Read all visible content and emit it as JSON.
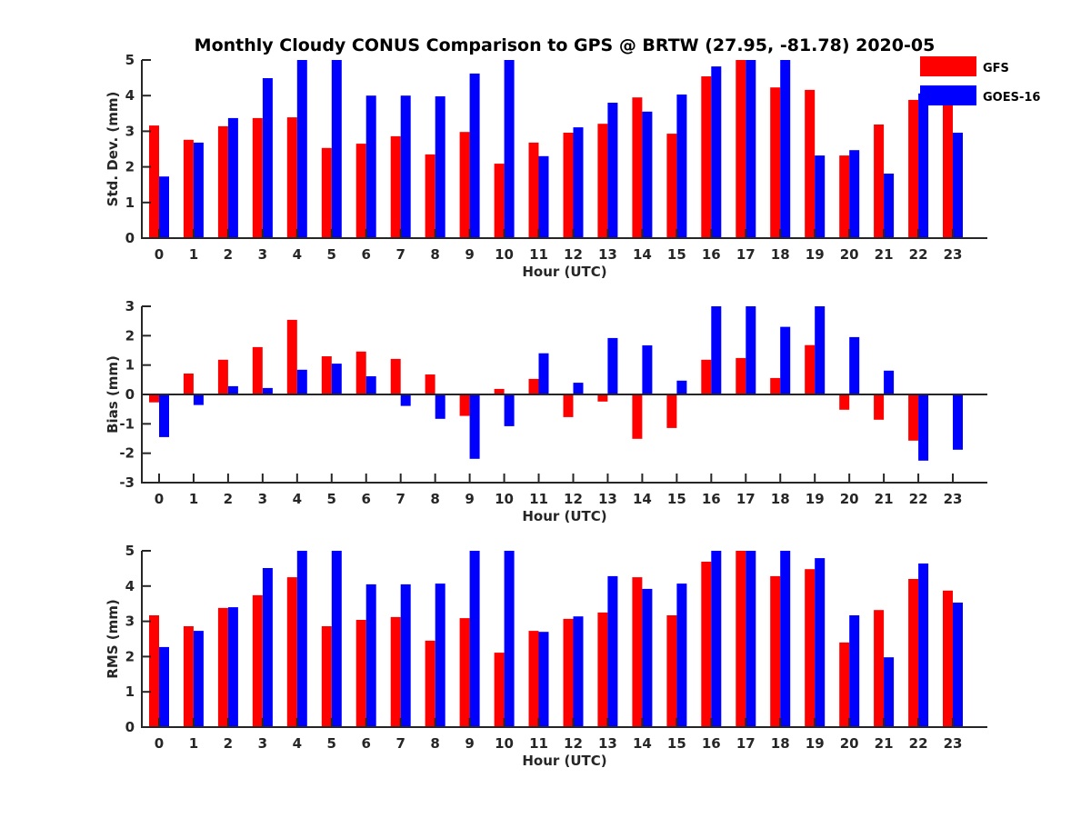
{
  "chart_data": {
    "title": "Monthly Cloudy CONUS Comparison to GPS @ BRTW (27.95, -81.78) 2020-05",
    "type": "bar",
    "legend": {
      "placement": "top-right",
      "entries": [
        {
          "name": "GFS",
          "color": "#ff0000"
        },
        {
          "name": "GOES-16",
          "color": "#0000ff"
        }
      ]
    },
    "categories": [
      "0",
      "1",
      "2",
      "3",
      "4",
      "5",
      "6",
      "7",
      "8",
      "9",
      "10",
      "11",
      "12",
      "13",
      "14",
      "15",
      "16",
      "17",
      "18",
      "19",
      "20",
      "21",
      "22",
      "23"
    ],
    "panels": [
      {
        "id": "std",
        "ylabel": "Std. Dev. (mm)",
        "xlabel": "Hour (UTC)",
        "ylim": [
          0,
          5
        ],
        "yticks": [
          0,
          1,
          2,
          3,
          4,
          5
        ],
        "series": [
          {
            "name": "GFS",
            "color": "#ff0000",
            "values": [
              3.16,
              2.76,
              3.14,
              3.37,
              3.39,
              2.53,
              2.65,
              2.86,
              2.35,
              2.98,
              2.09,
              2.68,
              2.96,
              3.21,
              3.95,
              2.93,
              4.54,
              5.0,
              4.23,
              4.16,
              2.32,
              3.19,
              3.88,
              3.9
            ]
          },
          {
            "name": "GOES-16",
            "color": "#0000ff",
            "values": [
              1.73,
              2.68,
              3.37,
              4.49,
              5.0,
              5.0,
              4.0,
              4.0,
              3.98,
              4.62,
              5.0,
              2.3,
              3.11,
              3.8,
              3.55,
              4.03,
              4.82,
              5.0,
              5.0,
              2.32,
              2.47,
              1.81,
              4.06,
              2.96
            ]
          }
        ]
      },
      {
        "id": "bias",
        "ylabel": "Bias (mm)",
        "xlabel": "Hour (UTC)",
        "ylim": [
          -3,
          3
        ],
        "yticks": [
          -3,
          -2,
          -1,
          0,
          1,
          2,
          3
        ],
        "series": [
          {
            "name": "GFS",
            "color": "#ff0000",
            "values": [
              -0.27,
              0.71,
              1.18,
              1.61,
              2.54,
              1.3,
              1.46,
              1.21,
              0.68,
              -0.73,
              0.19,
              0.53,
              -0.77,
              -0.24,
              -1.51,
              -1.14,
              1.18,
              1.24,
              0.56,
              1.68,
              -0.52,
              -0.86,
              -1.57,
              0.02
            ]
          },
          {
            "name": "GOES-16",
            "color": "#0000ff",
            "values": [
              -1.45,
              -0.36,
              0.28,
              0.22,
              0.84,
              1.05,
              0.62,
              -0.39,
              -0.83,
              -2.19,
              -1.08,
              1.4,
              0.4,
              1.92,
              1.67,
              0.47,
              3.0,
              3.0,
              2.3,
              3.0,
              1.95,
              0.81,
              -2.25,
              -1.88
            ]
          }
        ]
      },
      {
        "id": "rms",
        "ylabel": "RMS (mm)",
        "xlabel": "Hour (UTC)",
        "ylim": [
          0,
          5
        ],
        "yticks": [
          0,
          1,
          2,
          3,
          4,
          5
        ],
        "series": [
          {
            "name": "GFS",
            "color": "#ff0000",
            "values": [
              3.17,
              2.86,
              3.38,
              3.74,
              4.25,
              2.86,
              3.04,
              3.12,
              2.45,
              3.09,
              2.11,
              2.73,
              3.07,
              3.25,
              4.25,
              3.17,
              4.69,
              5.0,
              4.28,
              4.48,
              2.4,
              3.32,
              4.2,
              3.87
            ]
          },
          {
            "name": "GOES-16",
            "color": "#0000ff",
            "values": [
              2.27,
              2.73,
              3.4,
              4.51,
              5.0,
              5.0,
              4.05,
              4.05,
              4.07,
              5.0,
              5.0,
              2.7,
              3.14,
              4.28,
              3.92,
              4.07,
              5.0,
              5.0,
              5.0,
              4.79,
              3.17,
              1.98,
              4.64,
              3.53
            ]
          }
        ]
      }
    ]
  }
}
